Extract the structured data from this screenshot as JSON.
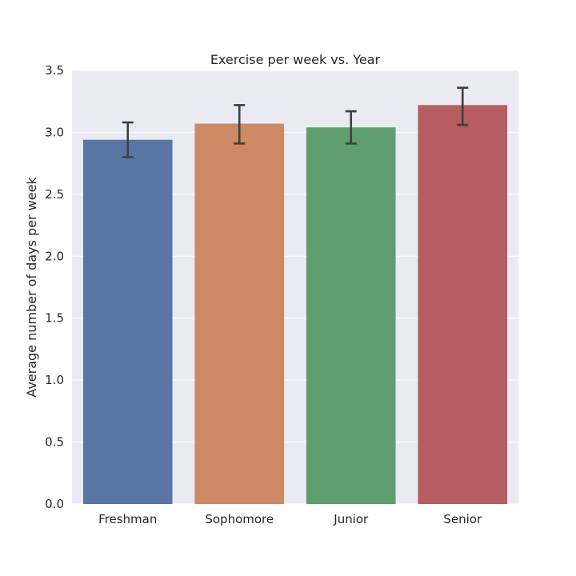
{
  "chart_data": {
    "type": "bar",
    "title": "Exercise per week vs. Year",
    "xlabel": "",
    "ylabel": "Average number of days per week",
    "categories": [
      "Freshman",
      "Sophomore",
      "Junior",
      "Senior"
    ],
    "values": [
      2.94,
      3.07,
      3.04,
      3.22
    ],
    "error_low": [
      2.8,
      2.91,
      2.91,
      3.06
    ],
    "error_high": [
      3.08,
      3.22,
      3.17,
      3.36
    ],
    "colors": [
      "#5975a4",
      "#cc8963",
      "#5f9e6e",
      "#b55d60"
    ],
    "ylim": [
      0,
      3.5
    ],
    "yticks": [
      "0.0",
      "0.5",
      "1.0",
      "1.5",
      "2.0",
      "2.5",
      "3.0",
      "3.5"
    ],
    "grid": true,
    "background": "#eaeaf2",
    "errorbar_color": "#3f3f3f"
  }
}
